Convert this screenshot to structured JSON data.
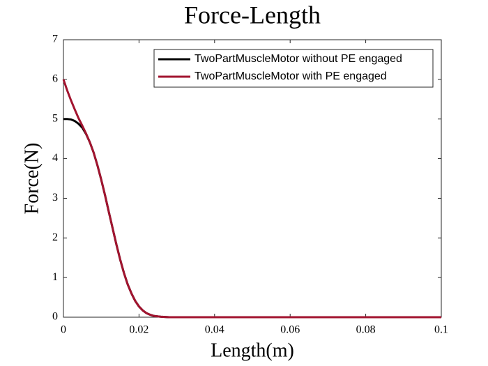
{
  "chart_data": {
    "type": "line",
    "title": "Force-Length",
    "xlabel": "Length(m)",
    "ylabel": "Force(N)",
    "x": [
      0,
      0.001,
      0.002,
      0.003,
      0.004,
      0.005,
      0.006,
      0.007,
      0.008,
      0.009,
      0.01,
      0.011,
      0.012,
      0.013,
      0.014,
      0.015,
      0.016,
      0.017,
      0.018,
      0.019,
      0.02,
      0.021,
      0.022,
      0.023,
      0.024,
      0.025,
      0.026,
      0.028,
      0.03,
      0.04,
      0.06,
      0.08,
      0.1
    ],
    "series": [
      {
        "name": "TwoPartMuscleMotor without PE engaged",
        "color": "#000000",
        "values": [
          5,
          5,
          4.99,
          4.95,
          4.88,
          4.78,
          4.62,
          4.41,
          4.15,
          3.83,
          3.47,
          3.08,
          2.66,
          2.25,
          1.84,
          1.46,
          1.12,
          0.83,
          0.6,
          0.41,
          0.27,
          0.17,
          0.1,
          0.06,
          0.03,
          0.02,
          0.01,
          0,
          0,
          0,
          0,
          0,
          0
        ]
      },
      {
        "name": "TwoPartMuscleMotor with PE engaged",
        "color": "#a2142f",
        "values": [
          6,
          5.72,
          5.47,
          5.24,
          5.02,
          4.83,
          4.63,
          4.41,
          4.15,
          3.83,
          3.47,
          3.08,
          2.66,
          2.25,
          1.84,
          1.46,
          1.12,
          0.83,
          0.6,
          0.41,
          0.27,
          0.17,
          0.1,
          0.06,
          0.03,
          0.02,
          0.01,
          0,
          0,
          0,
          0,
          0,
          0
        ]
      }
    ],
    "xlim": [
      0,
      0.1
    ],
    "xticks": [
      0,
      0.02,
      0.04,
      0.06,
      0.08,
      0.1
    ],
    "ylim": [
      0,
      7
    ],
    "yticks": [
      0,
      1,
      2,
      3,
      4,
      5,
      6,
      7
    ],
    "legend": "upper right",
    "grid": false
  }
}
